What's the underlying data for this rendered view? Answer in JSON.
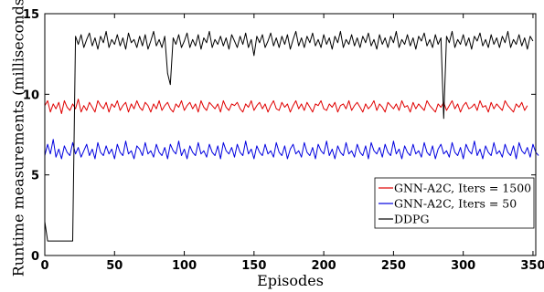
{
  "chart_data": {
    "type": "line",
    "title": "",
    "xlabel": "Episodes",
    "ylabel": "Runtime measurements (milliseconds)",
    "xlim": [
      0,
      352
    ],
    "ylim": [
      0,
      15
    ],
    "xticks": [
      0,
      50,
      100,
      150,
      200,
      250,
      300,
      350
    ],
    "yticks": [
      0,
      5,
      10,
      15
    ],
    "grid": false,
    "legend_position": "center-right",
    "series": [
      {
        "name": "GNN-A2C, Iters = 1500",
        "color": "#e00000",
        "x_start": 0,
        "x_step": 2,
        "values": [
          9.3,
          9.6,
          8.9,
          9.4,
          9.1,
          9.5,
          8.8,
          9.6,
          9.2,
          9.0,
          9.4,
          9.1,
          9.7,
          8.9,
          9.3,
          9.0,
          9.5,
          9.2,
          8.9,
          9.6,
          9.3,
          9.1,
          9.5,
          8.9,
          9.4,
          9.2,
          9.6,
          9.0,
          9.3,
          9.5,
          8.9,
          9.4,
          9.1,
          9.6,
          9.2,
          9.0,
          9.5,
          9.3,
          8.9,
          9.4,
          9.1,
          9.6,
          9.0,
          9.3,
          9.5,
          9.1,
          8.9,
          9.4,
          9.2,
          9.6,
          9.0,
          9.3,
          9.5,
          9.1,
          9.4,
          8.9,
          9.6,
          9.2,
          9.0,
          9.5,
          9.3,
          9.1,
          9.4,
          8.9,
          9.6,
          9.2,
          9.0,
          9.4,
          9.3,
          9.5,
          9.1,
          8.9,
          9.4,
          9.2,
          9.6,
          9.0,
          9.3,
          9.5,
          9.1,
          9.4,
          8.9,
          9.3,
          9.6,
          9.1,
          9.0,
          9.5,
          9.2,
          9.4,
          8.9,
          9.3,
          9.6,
          9.1,
          9.4,
          9.0,
          9.5,
          9.2,
          8.9,
          9.4,
          9.3,
          9.6,
          9.1,
          9.0,
          9.4,
          9.2,
          9.5,
          8.9,
          9.3,
          9.4,
          9.1,
          9.6,
          9.0,
          9.3,
          9.5,
          9.2,
          8.9,
          9.4,
          9.1,
          9.3,
          9.6,
          9.0,
          9.4,
          9.2,
          8.9,
          9.5,
          9.3,
          9.1,
          9.4,
          9.0,
          9.6,
          9.2,
          9.3,
          8.9,
          9.5,
          9.1,
          9.4,
          9.2,
          9.0,
          9.6,
          9.3,
          9.1,
          8.9,
          9.4,
          9.2,
          9.5,
          9.0,
          9.3,
          9.6,
          9.1,
          9.4,
          8.9,
          9.3,
          9.5,
          9.1,
          9.2,
          9.4,
          9.0,
          9.6,
          9.2,
          9.3,
          8.9,
          9.5,
          9.1,
          9.4,
          9.2,
          9.0,
          9.6,
          9.3,
          9.1,
          8.9,
          9.4,
          9.2,
          9.5,
          9.0,
          9.3
        ]
      },
      {
        "name": "GNN-A2C, Iters = 50",
        "color": "#0000e0",
        "x_start": 0,
        "x_step": 2,
        "values": [
          6.2,
          6.9,
          6.3,
          7.2,
          6.1,
          6.6,
          6.0,
          6.8,
          6.4,
          6.2,
          7.0,
          6.3,
          6.7,
          6.1,
          6.5,
          6.9,
          6.2,
          6.6,
          6.0,
          7.0,
          6.4,
          6.2,
          6.8,
          6.3,
          6.6,
          6.0,
          6.9,
          6.4,
          6.2,
          7.1,
          6.3,
          6.5,
          6.0,
          6.8,
          6.6,
          6.2,
          7.0,
          6.3,
          6.5,
          6.1,
          6.9,
          6.4,
          6.2,
          6.7,
          6.0,
          6.9,
          6.5,
          6.3,
          7.1,
          6.2,
          6.6,
          6.0,
          6.8,
          6.4,
          6.2,
          7.0,
          6.3,
          6.5,
          6.1,
          6.9,
          6.4,
          6.2,
          6.8,
          6.0,
          7.0,
          6.5,
          6.3,
          6.7,
          6.1,
          6.9,
          6.4,
          6.2,
          7.1,
          6.3,
          6.6,
          6.0,
          6.8,
          6.4,
          6.2,
          6.9,
          6.3,
          6.5,
          6.1,
          7.0,
          6.4,
          6.2,
          6.8,
          6.0,
          6.6,
          6.9,
          6.3,
          6.5,
          6.1,
          7.0,
          6.4,
          6.2,
          6.7,
          6.0,
          6.9,
          6.5,
          6.3,
          7.1,
          6.2,
          6.6,
          6.0,
          6.8,
          6.4,
          6.2,
          7.0,
          6.3,
          6.5,
          6.1,
          6.9,
          6.4,
          6.2,
          6.8,
          6.0,
          7.0,
          6.5,
          6.3,
          6.7,
          6.1,
          6.9,
          6.4,
          6.2,
          7.1,
          6.3,
          6.6,
          6.0,
          6.8,
          6.4,
          6.2,
          6.9,
          6.3,
          6.5,
          6.1,
          7.0,
          6.4,
          6.2,
          6.8,
          6.0,
          6.6,
          6.9,
          6.3,
          6.5,
          6.1,
          7.0,
          6.4,
          6.2,
          6.7,
          6.0,
          6.9,
          6.5,
          6.3,
          7.1,
          6.2,
          6.6,
          6.0,
          6.8,
          6.4,
          6.2,
          7.0,
          6.3,
          6.5,
          6.1,
          6.9,
          6.4,
          6.2,
          6.8,
          6.0,
          7.0,
          6.5,
          6.3,
          6.7,
          6.1,
          6.9,
          6.4,
          6.2
        ]
      },
      {
        "name": "DDPG",
        "color": "#000000",
        "x_start": 0,
        "x_step": 2,
        "values": [
          2.1,
          0.9,
          0.9,
          0.9,
          0.9,
          0.9,
          0.9,
          0.9,
          0.9,
          0.9,
          0.9,
          13.6,
          13.1,
          13.7,
          12.9,
          13.4,
          13.8,
          13.0,
          13.5,
          12.8,
          13.6,
          13.2,
          13.9,
          12.9,
          13.4,
          13.1,
          13.7,
          13.0,
          13.5,
          12.8,
          13.8,
          13.2,
          13.4,
          12.9,
          13.6,
          13.0,
          13.7,
          12.8,
          13.3,
          13.9,
          13.0,
          13.4,
          12.9,
          13.6,
          11.3,
          10.6,
          13.5,
          13.1,
          13.7,
          12.9,
          13.3,
          13.8,
          12.9,
          13.4,
          13.0,
          13.7,
          12.8,
          13.5,
          13.2,
          13.9,
          12.9,
          13.4,
          13.1,
          13.6,
          13.0,
          13.5,
          12.8,
          13.7,
          13.3,
          12.9,
          13.6,
          13.1,
          13.8,
          12.9,
          13.4,
          12.4,
          13.6,
          13.2,
          13.7,
          12.9,
          13.3,
          13.8,
          13.0,
          13.5,
          12.9,
          13.6,
          13.1,
          13.7,
          12.8,
          13.4,
          13.9,
          13.0,
          13.5,
          12.9,
          13.6,
          13.2,
          13.8,
          13.0,
          13.4,
          12.9,
          13.7,
          13.1,
          13.5,
          12.8,
          13.6,
          13.2,
          13.9,
          12.9,
          13.4,
          13.1,
          13.7,
          13.0,
          13.5,
          12.9,
          13.6,
          13.2,
          13.8,
          13.0,
          13.4,
          12.8,
          13.7,
          13.1,
          13.5,
          12.9,
          13.6,
          13.2,
          13.9,
          12.9,
          13.4,
          13.1,
          13.7,
          13.0,
          13.5,
          12.8,
          13.6,
          13.3,
          13.8,
          13.0,
          13.4,
          12.9,
          13.7,
          13.1,
          13.5,
          8.5,
          13.6,
          13.2,
          13.9,
          12.9,
          13.4,
          13.1,
          13.7,
          13.0,
          13.5,
          12.8,
          13.6,
          13.3,
          13.8,
          13.0,
          13.4,
          12.9,
          13.7,
          13.1,
          13.5,
          12.9,
          13.6,
          13.2,
          13.9,
          12.9,
          13.4,
          13.1,
          13.7,
          13.0,
          13.5,
          12.8,
          13.6,
          13.3
        ]
      }
    ]
  }
}
